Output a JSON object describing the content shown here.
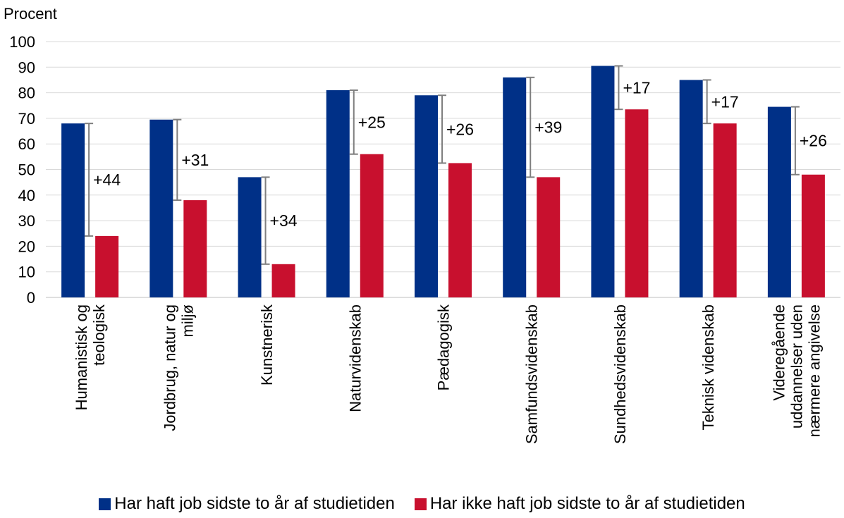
{
  "chart_data": {
    "type": "bar",
    "ylabel": "Procent",
    "ylim": [
      0,
      100
    ],
    "yticks": [
      "0",
      "10",
      "20",
      "30",
      "40",
      "50",
      "60",
      "70",
      "80",
      "90",
      "100"
    ],
    "grid": true,
    "legend_position": "bottom",
    "categories": [
      [
        "Humanistisk og",
        "teologisk"
      ],
      [
        "Jordbrug, natur og",
        "miljø"
      ],
      [
        "Kunstnerisk"
      ],
      [
        "Naturvidenskab"
      ],
      [
        "Pædagogisk"
      ],
      [
        "Samfundsvidenskab"
      ],
      [
        "Sundhedsvidenskab"
      ],
      [
        "Teknisk videnskab"
      ],
      [
        "Videregående",
        "uddannelser uden",
        "nærmere angivelse"
      ]
    ],
    "series": [
      {
        "name": "Har haft job sidste to år af studietiden",
        "color": "#003087",
        "values": [
          68,
          69.5,
          47,
          81,
          79,
          86,
          90.5,
          85,
          74.5
        ]
      },
      {
        "name": "Har ikke haft job sidste to år af studietiden",
        "color": "#C8102E",
        "values": [
          24,
          38,
          13,
          56,
          52.5,
          47,
          73.5,
          68,
          48
        ]
      }
    ],
    "difference_labels": [
      "+44",
      "+31",
      "+34",
      "+25",
      "+26",
      "+39",
      "+17",
      "+17",
      "+26"
    ]
  }
}
